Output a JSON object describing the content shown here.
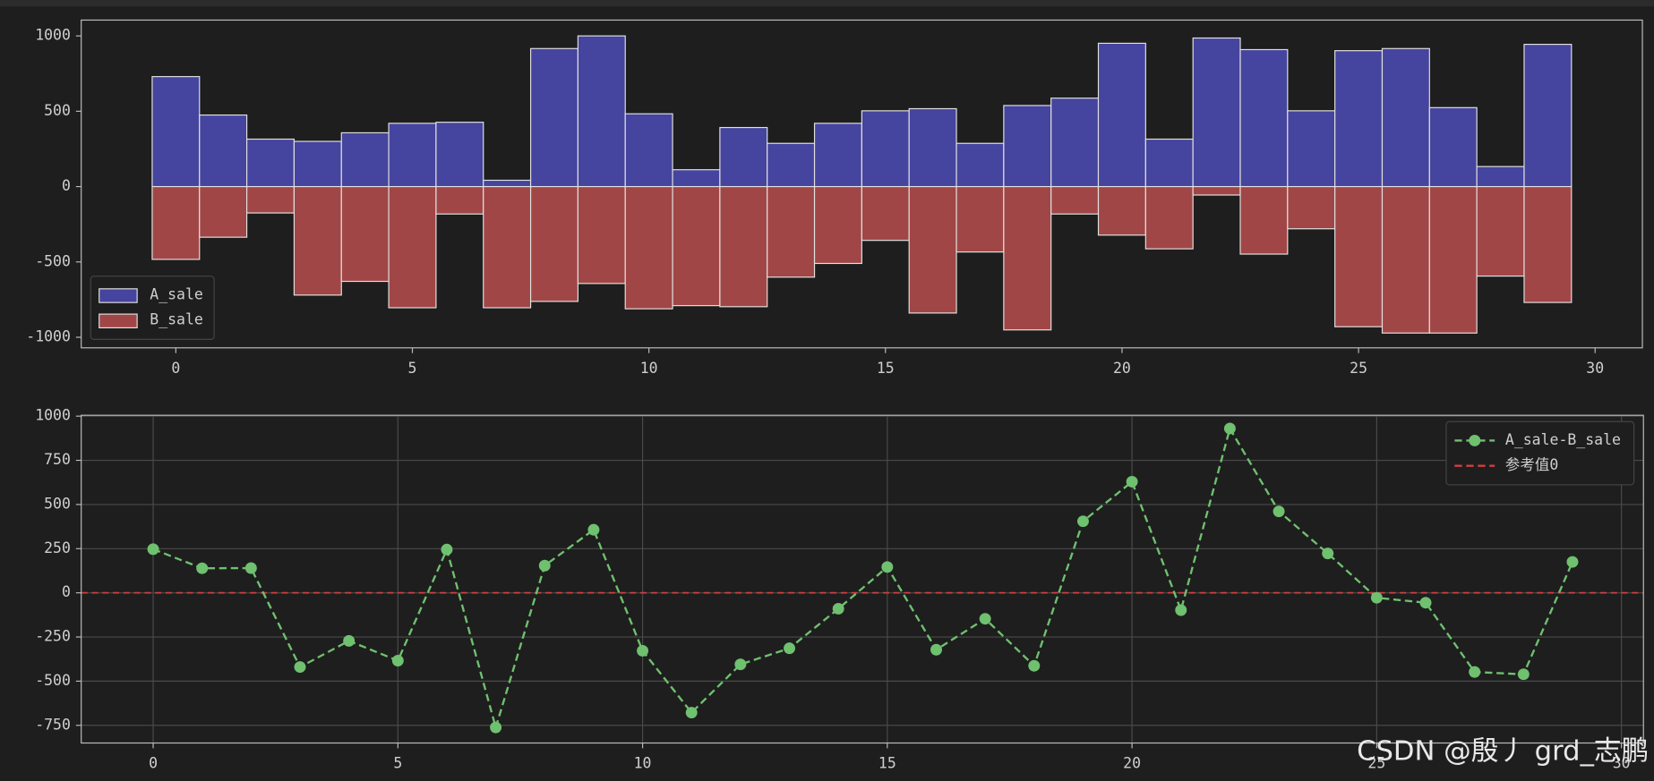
{
  "chart_data": [
    {
      "type": "bar",
      "x": [
        0,
        1,
        2,
        3,
        4,
        5,
        6,
        7,
        8,
        9,
        10,
        11,
        12,
        13,
        14,
        15,
        16,
        17,
        18,
        19,
        20,
        21,
        22,
        23,
        24,
        25,
        26,
        27,
        28,
        29
      ],
      "series": [
        {
          "name": "A_sale",
          "color": "#45449e",
          "values": [
            730,
            475,
            315,
            300,
            357,
            420,
            427,
            42,
            916,
            1000,
            483,
            112,
            392,
            287,
            420,
            503,
            517,
            287,
            538,
            587,
            951,
            315,
            986,
            909,
            503,
            902,
            916,
            524,
            133,
            944
          ]
        },
        {
          "name": "B_sale",
          "color": "#a14646",
          "values": [
            -483,
            -336,
            -175,
            -720,
            -629,
            -804,
            -182,
            -804,
            -762,
            -643,
            -811,
            -790,
            -797,
            -601,
            -510,
            -357,
            -839,
            -434,
            -951,
            -182,
            -322,
            -413,
            -56,
            -448,
            -280,
            -930,
            -972,
            -972,
            -594,
            -769
          ]
        }
      ],
      "xlim": [
        -2.0,
        31.0
      ],
      "xticks": [
        0,
        5,
        10,
        15,
        20,
        25,
        30
      ],
      "ylim": [
        -1070,
        1105
      ],
      "yticks": [
        -1000,
        -500,
        0,
        500,
        1000
      ],
      "grid": false,
      "legend": "lower left"
    },
    {
      "type": "line",
      "x": [
        0,
        1,
        2,
        3,
        4,
        5,
        6,
        7,
        8,
        9,
        10,
        11,
        12,
        13,
        14,
        15,
        16,
        17,
        18,
        19,
        20,
        21,
        22,
        23,
        24,
        25,
        26,
        27,
        28,
        29
      ],
      "series": [
        {
          "name": "A_sale-B_sale",
          "color": "#6fc06f",
          "values": [
            247,
            139,
            140,
            -420,
            -272,
            -384,
            245,
            -762,
            154,
            357,
            -328,
            -678,
            -405,
            -314,
            -90,
            146,
            -322,
            -147,
            -413,
            405,
            629,
            -98,
            930,
            461,
            223,
            -28,
            -56,
            -448,
            -461,
            175
          ]
        }
      ],
      "reference": {
        "name": "参考值0",
        "value": 0,
        "color": "#d04040"
      },
      "xlim": [
        -1.47,
        30.45
      ],
      "xticks": [
        0,
        5,
        10,
        15,
        20,
        25,
        30
      ],
      "ylim": [
        -850,
        1005
      ],
      "yticks": [
        -750,
        -500,
        -250,
        0,
        250,
        500,
        750,
        1000
      ],
      "grid": true,
      "legend": "upper right"
    }
  ],
  "watermark": "CSDN @殷丿 grd_志鹏"
}
